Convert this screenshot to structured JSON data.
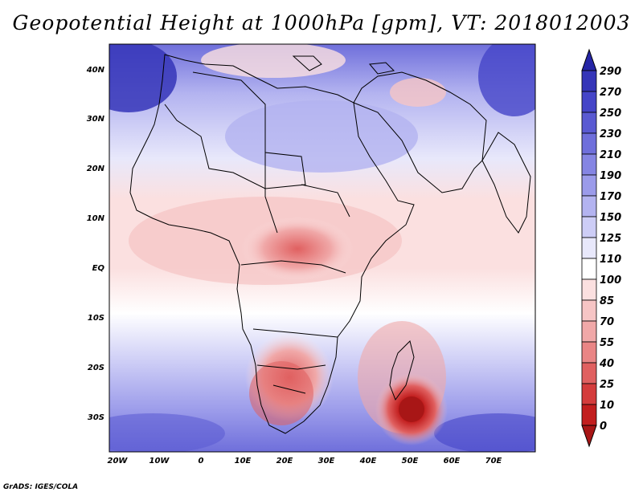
{
  "title": "Geopotential Height at 1000hPa [gpm], VT: 2018012003",
  "credit": "GrADS: IGES/COLA",
  "lat_labels": [
    "40N",
    "30N",
    "20N",
    "10N",
    "EQ",
    "10S",
    "20S",
    "30S"
  ],
  "lon_labels": [
    "20W",
    "10W",
    "0",
    "10E",
    "20E",
    "30E",
    "40E",
    "50E",
    "60E",
    "70E"
  ],
  "colorbar": {
    "labels": [
      "290",
      "270",
      "250",
      "230",
      "210",
      "190",
      "170",
      "150",
      "125",
      "110",
      "100",
      "85",
      "70",
      "55",
      "40",
      "25",
      "10",
      "0"
    ],
    "colors": [
      "#2626a6",
      "#3535b8",
      "#4545c8",
      "#5a5ad2",
      "#6f6fdb",
      "#8585e3",
      "#9b9bea",
      "#b3b3f0",
      "#cdcdf6",
      "#e8e8fb",
      "#ffffff",
      "#fbe0e0",
      "#f6c5c5",
      "#f0a8a8",
      "#e98585",
      "#e06060",
      "#d43c3c",
      "#c21e1e",
      "#a81616"
    ]
  }
}
